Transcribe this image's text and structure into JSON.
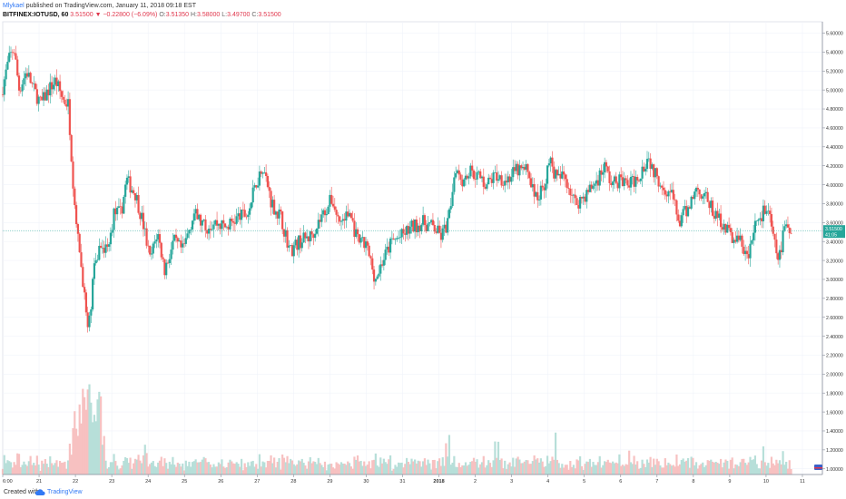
{
  "header": {
    "author": "Mlykael",
    "published": "published on TradingView.com, January 11, 2018 09:18 EST",
    "symbol": "BITFINEX:IOTUSD, 60",
    "last": "3.51500",
    "change_arrow": "▼",
    "change": "−0.22800 (−6.09%)",
    "ohlc": {
      "o_label": "O:",
      "o": "3.51350",
      "h_label": "H:",
      "h": "3.58000",
      "l_label": "L:",
      "l": "3.49700",
      "c_label": "C:",
      "c": "3.51500"
    }
  },
  "footer": {
    "created_with": "Created with",
    "brand": "TradingView",
    "logo_icon": "tradingview-cloud-icon"
  },
  "price_tag": {
    "price": "3.51500",
    "countdown": "41:05",
    "color": "#26a69a"
  },
  "colors": {
    "up": "#26a69a",
    "down": "#ef5350",
    "up_volume": "#b7dfd9",
    "down_volume": "#f7c1c1",
    "grid": "#f0f3fa",
    "axis_text": "#333333"
  },
  "chart_data": {
    "type": "candlestick",
    "symbol": "BITFINEX:IOTUSD",
    "interval": "60",
    "y_axis": {
      "ticks": [
        "1.00000",
        "1.20000",
        "1.40000",
        "1.60000",
        "1.80000",
        "2.00000",
        "2.20000",
        "2.40000",
        "2.60000",
        "2.80000",
        "3.00000",
        "3.20000",
        "3.40000",
        "3.60000",
        "3.80000",
        "4.00000",
        "4.20000",
        "4.40000",
        "4.60000",
        "4.80000",
        "5.00000",
        "5.20000",
        "5.40000",
        "5.60000"
      ],
      "range": [
        0.94,
        5.72
      ]
    },
    "x_axis": {
      "labels": [
        "6:00",
        "21",
        "22",
        "23",
        "24",
        "25",
        "26",
        "27",
        "28",
        "29",
        "30",
        "31",
        "2018",
        "2",
        "3",
        "4",
        "5",
        "6",
        "7",
        "8",
        "9",
        "10",
        "11"
      ],
      "range": [
        0,
        22.4
      ]
    },
    "price_path": [
      [
        0,
        4.95
      ],
      [
        0.2,
        5.3
      ],
      [
        0.35,
        5.45
      ],
      [
        0.5,
        5.0
      ],
      [
        0.7,
        5.2
      ],
      [
        0.9,
        5.0
      ],
      [
        1.1,
        4.85
      ],
      [
        1.3,
        5.0
      ],
      [
        1.5,
        5.1
      ],
      [
        1.7,
        4.9
      ],
      [
        1.85,
        4.85
      ],
      [
        2.05,
        3.6
      ],
      [
        2.25,
        3.0
      ],
      [
        2.4,
        2.4
      ],
      [
        2.55,
        3.1
      ],
      [
        2.75,
        3.4
      ],
      [
        2.95,
        3.3
      ],
      [
        3.1,
        3.7
      ],
      [
        3.3,
        3.7
      ],
      [
        3.45,
        4.05
      ],
      [
        3.7,
        3.9
      ],
      [
        3.9,
        3.6
      ],
      [
        4.1,
        3.2
      ],
      [
        4.3,
        3.5
      ],
      [
        4.5,
        3.1
      ],
      [
        4.75,
        3.4
      ],
      [
        5.0,
        3.3
      ],
      [
        5.3,
        3.7
      ],
      [
        5.6,
        3.55
      ],
      [
        5.9,
        3.6
      ],
      [
        6.2,
        3.55
      ],
      [
        6.5,
        3.65
      ],
      [
        6.8,
        3.7
      ],
      [
        7.0,
        4.0
      ],
      [
        7.2,
        4.2
      ],
      [
        7.45,
        3.8
      ],
      [
        7.7,
        3.65
      ],
      [
        7.95,
        3.3
      ],
      [
        8.2,
        3.4
      ],
      [
        8.5,
        3.45
      ],
      [
        8.8,
        3.65
      ],
      [
        9.1,
        3.85
      ],
      [
        9.3,
        3.6
      ],
      [
        9.6,
        3.7
      ],
      [
        9.8,
        3.4
      ],
      [
        10.05,
        3.35
      ],
      [
        10.3,
        3.0
      ],
      [
        10.5,
        3.2
      ],
      [
        10.75,
        3.4
      ],
      [
        11.0,
        3.45
      ],
      [
        11.3,
        3.55
      ],
      [
        11.6,
        3.6
      ],
      [
        11.9,
        3.55
      ],
      [
        12.1,
        3.45
      ],
      [
        12.3,
        3.6
      ],
      [
        12.5,
        4.2
      ],
      [
        12.7,
        4.05
      ],
      [
        12.9,
        4.15
      ],
      [
        13.1,
        4.1
      ],
      [
        13.35,
        4.0
      ],
      [
        13.6,
        4.1
      ],
      [
        13.9,
        4.05
      ],
      [
        14.2,
        4.15
      ],
      [
        14.5,
        4.15
      ],
      [
        14.7,
        3.85
      ],
      [
        14.9,
        3.95
      ],
      [
        15.1,
        4.25
      ],
      [
        15.3,
        4.05
      ],
      [
        15.5,
        4.1
      ],
      [
        15.8,
        3.8
      ],
      [
        16.1,
        3.9
      ],
      [
        16.4,
        4.05
      ],
      [
        16.6,
        4.2
      ],
      [
        16.8,
        4.0
      ],
      [
        17.0,
        4.05
      ],
      [
        17.3,
        4.0
      ],
      [
        17.55,
        4.1
      ],
      [
        17.8,
        4.3
      ],
      [
        18.0,
        4.1
      ],
      [
        18.2,
        4.0
      ],
      [
        18.45,
        3.9
      ],
      [
        18.65,
        3.6
      ],
      [
        18.9,
        3.75
      ],
      [
        19.1,
        3.95
      ],
      [
        19.35,
        3.9
      ],
      [
        19.6,
        3.7
      ],
      [
        19.85,
        3.6
      ],
      [
        20.1,
        3.45
      ],
      [
        20.35,
        3.4
      ],
      [
        20.55,
        3.2
      ],
      [
        20.75,
        3.6
      ],
      [
        20.95,
        3.7
      ],
      [
        21.1,
        3.75
      ],
      [
        21.25,
        3.4
      ],
      [
        21.4,
        3.2
      ],
      [
        21.55,
        3.55
      ],
      [
        21.7,
        3.51
      ]
    ],
    "last_price": 3.515
  }
}
